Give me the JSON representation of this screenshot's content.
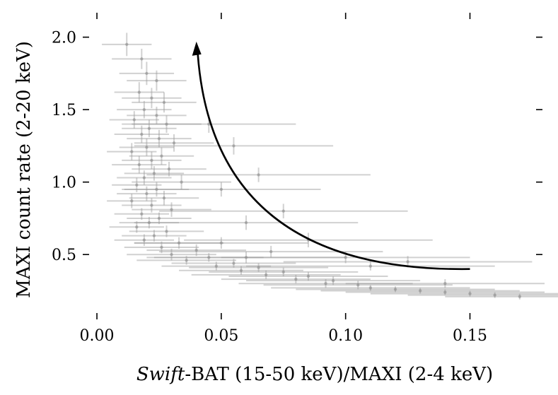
{
  "chart_data": {
    "type": "scatter",
    "title": "",
    "xlabel_italic": "Swift",
    "xlabel_rest": "-BAT (15-50 keV)/MAXI (2-4 keV)",
    "ylabel": "MAXI count rate (2-20 keV)",
    "xlim": [
      -0.002,
      0.18
    ],
    "ylim": [
      0.15,
      2.12
    ],
    "xticks": [
      0.0,
      0.05,
      0.1,
      0.15
    ],
    "xtick_labels": [
      "0.00",
      "0.05",
      "0.10",
      "0.15"
    ],
    "yticks": [
      0.5,
      1.0,
      1.5,
      2.0
    ],
    "ytick_labels": [
      "0.5",
      "1.0",
      "1.5",
      "2.0"
    ],
    "grid": false,
    "series": [
      {
        "color": "#8a8a8a",
        "error_bars": true,
        "points": [
          {
            "x": 0.012,
            "y": 1.95,
            "xerr": 0.01,
            "yerr": 0.08
          },
          {
            "x": 0.018,
            "y": 1.85,
            "xerr": 0.012,
            "yerr": 0.07
          },
          {
            "x": 0.02,
            "y": 1.75,
            "xerr": 0.011,
            "yerr": 0.08
          },
          {
            "x": 0.024,
            "y": 1.7,
            "xerr": 0.012,
            "yerr": 0.07
          },
          {
            "x": 0.017,
            "y": 1.62,
            "xerr": 0.01,
            "yerr": 0.07
          },
          {
            "x": 0.022,
            "y": 1.58,
            "xerr": 0.012,
            "yerr": 0.07
          },
          {
            "x": 0.027,
            "y": 1.55,
            "xerr": 0.013,
            "yerr": 0.07
          },
          {
            "x": 0.019,
            "y": 1.5,
            "xerr": 0.011,
            "yerr": 0.06
          },
          {
            "x": 0.024,
            "y": 1.46,
            "xerr": 0.012,
            "yerr": 0.06
          },
          {
            "x": 0.015,
            "y": 1.43,
            "xerr": 0.01,
            "yerr": 0.06
          },
          {
            "x": 0.028,
            "y": 1.4,
            "xerr": 0.014,
            "yerr": 0.06
          },
          {
            "x": 0.021,
            "y": 1.37,
            "xerr": 0.011,
            "yerr": 0.06
          },
          {
            "x": 0.018,
            "y": 1.33,
            "xerr": 0.011,
            "yerr": 0.06
          },
          {
            "x": 0.025,
            "y": 1.3,
            "xerr": 0.013,
            "yerr": 0.06
          },
          {
            "x": 0.031,
            "y": 1.27,
            "xerr": 0.016,
            "yerr": 0.06
          },
          {
            "x": 0.02,
            "y": 1.24,
            "xerr": 0.011,
            "yerr": 0.06
          },
          {
            "x": 0.014,
            "y": 1.21,
            "xerr": 0.01,
            "yerr": 0.06
          },
          {
            "x": 0.026,
            "y": 1.18,
            "xerr": 0.013,
            "yerr": 0.06
          },
          {
            "x": 0.022,
            "y": 1.15,
            "xerr": 0.012,
            "yerr": 0.06
          },
          {
            "x": 0.017,
            "y": 1.12,
            "xerr": 0.011,
            "yerr": 0.06
          },
          {
            "x": 0.029,
            "y": 1.09,
            "xerr": 0.015,
            "yerr": 0.05
          },
          {
            "x": 0.023,
            "y": 1.06,
            "xerr": 0.012,
            "yerr": 0.05
          },
          {
            "x": 0.019,
            "y": 1.03,
            "xerr": 0.011,
            "yerr": 0.05
          },
          {
            "x": 0.034,
            "y": 1.0,
            "xerr": 0.02,
            "yerr": 0.05
          },
          {
            "x": 0.016,
            "y": 0.98,
            "xerr": 0.01,
            "yerr": 0.05
          },
          {
            "x": 0.024,
            "y": 0.95,
            "xerr": 0.013,
            "yerr": 0.05
          },
          {
            "x": 0.02,
            "y": 0.92,
            "xerr": 0.012,
            "yerr": 0.05
          },
          {
            "x": 0.027,
            "y": 0.89,
            "xerr": 0.014,
            "yerr": 0.05
          },
          {
            "x": 0.014,
            "y": 0.87,
            "xerr": 0.01,
            "yerr": 0.05
          },
          {
            "x": 0.022,
            "y": 0.84,
            "xerr": 0.012,
            "yerr": 0.05
          },
          {
            "x": 0.03,
            "y": 0.81,
            "xerr": 0.016,
            "yerr": 0.05
          },
          {
            "x": 0.018,
            "y": 0.78,
            "xerr": 0.011,
            "yerr": 0.04
          },
          {
            "x": 0.025,
            "y": 0.75,
            "xerr": 0.013,
            "yerr": 0.04
          },
          {
            "x": 0.021,
            "y": 0.72,
            "xerr": 0.012,
            "yerr": 0.04
          },
          {
            "x": 0.016,
            "y": 0.69,
            "xerr": 0.011,
            "yerr": 0.04
          },
          {
            "x": 0.028,
            "y": 0.66,
            "xerr": 0.015,
            "yerr": 0.04
          },
          {
            "x": 0.023,
            "y": 0.63,
            "xerr": 0.013,
            "yerr": 0.04
          },
          {
            "x": 0.019,
            "y": 0.6,
            "xerr": 0.012,
            "yerr": 0.04
          },
          {
            "x": 0.033,
            "y": 0.58,
            "xerr": 0.018,
            "yerr": 0.04
          },
          {
            "x": 0.026,
            "y": 0.55,
            "xerr": 0.015,
            "yerr": 0.04
          },
          {
            "x": 0.04,
            "y": 0.53,
            "xerr": 0.02,
            "yerr": 0.04
          },
          {
            "x": 0.03,
            "y": 0.5,
            "xerr": 0.018,
            "yerr": 0.04
          },
          {
            "x": 0.045,
            "y": 0.48,
            "xerr": 0.022,
            "yerr": 0.03
          },
          {
            "x": 0.036,
            "y": 0.46,
            "xerr": 0.02,
            "yerr": 0.03
          },
          {
            "x": 0.055,
            "y": 0.44,
            "xerr": 0.025,
            "yerr": 0.03
          },
          {
            "x": 0.048,
            "y": 0.42,
            "xerr": 0.022,
            "yerr": 0.03
          },
          {
            "x": 0.065,
            "y": 0.41,
            "xerr": 0.028,
            "yerr": 0.03
          },
          {
            "x": 0.058,
            "y": 0.39,
            "xerr": 0.025,
            "yerr": 0.03
          },
          {
            "x": 0.075,
            "y": 0.38,
            "xerr": 0.03,
            "yerr": 0.03
          },
          {
            "x": 0.068,
            "y": 0.36,
            "xerr": 0.03,
            "yerr": 0.03
          },
          {
            "x": 0.085,
            "y": 0.35,
            "xerr": 0.032,
            "yerr": 0.03
          },
          {
            "x": 0.08,
            "y": 0.33,
            "xerr": 0.03,
            "yerr": 0.03
          },
          {
            "x": 0.095,
            "y": 0.32,
            "xerr": 0.035,
            "yerr": 0.03
          },
          {
            "x": 0.092,
            "y": 0.3,
            "xerr": 0.035,
            "yerr": 0.03
          },
          {
            "x": 0.105,
            "y": 0.29,
            "xerr": 0.038,
            "yerr": 0.03
          },
          {
            "x": 0.11,
            "y": 0.27,
            "xerr": 0.04,
            "yerr": 0.02
          },
          {
            "x": 0.12,
            "y": 0.26,
            "xerr": 0.04,
            "yerr": 0.02
          },
          {
            "x": 0.13,
            "y": 0.25,
            "xerr": 0.04,
            "yerr": 0.02
          },
          {
            "x": 0.14,
            "y": 0.24,
            "xerr": 0.04,
            "yerr": 0.02
          },
          {
            "x": 0.15,
            "y": 0.23,
            "xerr": 0.04,
            "yerr": 0.02
          },
          {
            "x": 0.16,
            "y": 0.22,
            "xerr": 0.035,
            "yerr": 0.02
          },
          {
            "x": 0.17,
            "y": 0.21,
            "xerr": 0.03,
            "yerr": 0.02
          },
          {
            "x": 0.06,
            "y": 0.48,
            "xerr": 0.04,
            "yerr": 0.04
          },
          {
            "x": 0.07,
            "y": 0.52,
            "xerr": 0.045,
            "yerr": 0.04
          },
          {
            "x": 0.05,
            "y": 0.58,
            "xerr": 0.035,
            "yerr": 0.04
          },
          {
            "x": 0.085,
            "y": 0.6,
            "xerr": 0.05,
            "yerr": 0.05
          },
          {
            "x": 0.06,
            "y": 0.72,
            "xerr": 0.045,
            "yerr": 0.05
          },
          {
            "x": 0.075,
            "y": 0.8,
            "xerr": 0.05,
            "yerr": 0.05
          },
          {
            "x": 0.05,
            "y": 0.95,
            "xerr": 0.04,
            "yerr": 0.05
          },
          {
            "x": 0.065,
            "y": 1.05,
            "xerr": 0.045,
            "yerr": 0.05
          },
          {
            "x": 0.055,
            "y": 1.25,
            "xerr": 0.04,
            "yerr": 0.06
          },
          {
            "x": 0.045,
            "y": 1.4,
            "xerr": 0.035,
            "yerr": 0.06
          },
          {
            "x": 0.11,
            "y": 0.42,
            "xerr": 0.05,
            "yerr": 0.03
          },
          {
            "x": 0.125,
            "y": 0.45,
            "xerr": 0.05,
            "yerr": 0.04
          },
          {
            "x": 0.1,
            "y": 0.48,
            "xerr": 0.05,
            "yerr": 0.04
          },
          {
            "x": 0.14,
            "y": 0.3,
            "xerr": 0.04,
            "yerr": 0.03
          }
        ]
      }
    ],
    "annotations": [
      {
        "type": "arrow",
        "from": [
          0.15,
          0.4
        ],
        "to": [
          0.04,
          1.95
        ],
        "shape": "curve"
      }
    ]
  }
}
